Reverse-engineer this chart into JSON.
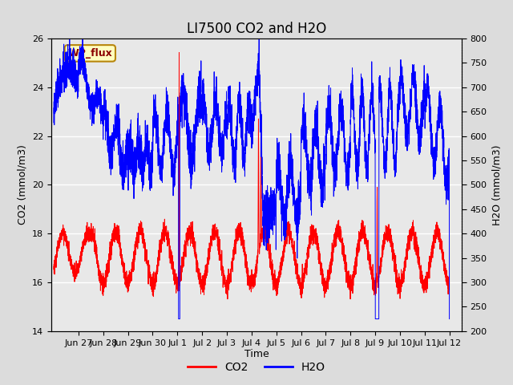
{
  "title": "LI7500 CO2 and H2O",
  "xlabel": "Time",
  "ylabel_left": "CO2 (mmol/m3)",
  "ylabel_right": "H2O (mmol/m3)",
  "annotation_text": "WP_flux",
  "ylim_left": [
    14,
    26
  ],
  "ylim_right": [
    200,
    800
  ],
  "yticks_left": [
    14,
    16,
    18,
    20,
    22,
    24,
    26
  ],
  "yticks_right": [
    200,
    250,
    300,
    350,
    400,
    450,
    500,
    550,
    600,
    650,
    700,
    750,
    800
  ],
  "co2_color": "#FF0000",
  "h2o_color": "#0000FF",
  "fig_bg_color": "#DCDCDC",
  "plot_bg_color": "#E8E8E8",
  "grid_color": "#FFFFFF",
  "title_fontsize": 12,
  "label_fontsize": 9,
  "tick_fontsize": 8,
  "legend_fontsize": 10,
  "date_labels": [
    "Jun 27",
    "Jun 28",
    "Jun 29",
    "Jun 30",
    "Jul 1",
    "Jul 2",
    "Jul 3",
    "Jul 4",
    "Jul 5",
    "Jul 6",
    "Jul 7",
    "Jul 8",
    "Jul 9",
    "Jul 10",
    "Jul 11",
    "Jul 12"
  ],
  "date_tick_positions": [
    1,
    2,
    3,
    4,
    5,
    6,
    7,
    8,
    9,
    10,
    11,
    12,
    13,
    14,
    15,
    16
  ],
  "xlim": [
    -0.1,
    16.5
  ],
  "seed": 42
}
